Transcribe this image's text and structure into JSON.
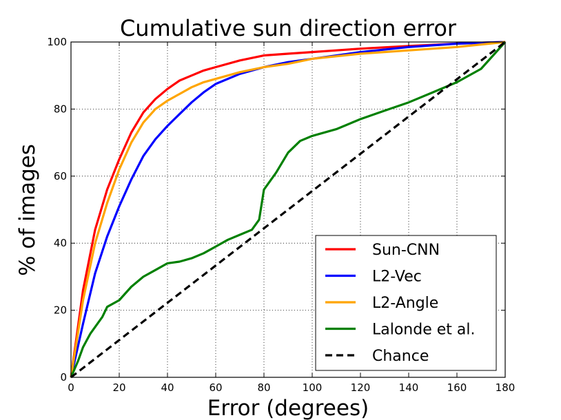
{
  "chart_data": {
    "type": "line",
    "title": "Cumulative sun direction error",
    "xlabel": "Error (degrees)",
    "ylabel": "% of images",
    "xlim": [
      0,
      180
    ],
    "ylim": [
      0,
      100
    ],
    "xticks": [
      0,
      20,
      40,
      60,
      80,
      100,
      120,
      140,
      160,
      180
    ],
    "yticks": [
      0,
      20,
      40,
      60,
      80,
      100
    ],
    "grid": true,
    "legend_position": "lower-right",
    "series": [
      {
        "name": "Sun-CNN",
        "color": "#ff0000",
        "style": "solid",
        "x": [
          0,
          5,
          10,
          15,
          20,
          25,
          30,
          35,
          40,
          45,
          50,
          55,
          60,
          70,
          80,
          90,
          100,
          120,
          140,
          160,
          180
        ],
        "y": [
          0,
          26,
          44,
          56,
          65,
          73,
          79,
          83,
          86,
          88.5,
          90,
          91.5,
          92.5,
          94.5,
          96,
          96.5,
          97,
          98,
          98.8,
          99.5,
          100
        ]
      },
      {
        "name": "L2-Vec",
        "color": "#0000ff",
        "style": "solid",
        "x": [
          0,
          5,
          10,
          15,
          20,
          25,
          30,
          35,
          40,
          45,
          50,
          55,
          60,
          70,
          80,
          90,
          100,
          120,
          140,
          160,
          180
        ],
        "y": [
          0,
          16,
          31,
          42,
          51,
          59,
          66,
          71,
          75,
          78.5,
          82,
          85,
          87.5,
          90.5,
          92.5,
          94,
          95,
          97,
          98.5,
          99.5,
          100
        ]
      },
      {
        "name": "L2-Angle",
        "color": "#ffa500",
        "style": "solid",
        "x": [
          0,
          5,
          10,
          15,
          20,
          25,
          30,
          35,
          40,
          45,
          50,
          55,
          60,
          70,
          80,
          90,
          100,
          120,
          140,
          160,
          180
        ],
        "y": [
          0,
          23,
          40,
          52,
          62,
          70,
          76,
          80,
          82.5,
          84.5,
          86.5,
          88,
          89,
          91,
          92.5,
          93.5,
          95,
          96.5,
          97.5,
          98.5,
          100
        ]
      },
      {
        "name": "Lalonde et al.",
        "color": "#008000",
        "style": "solid",
        "x": [
          0,
          3,
          5,
          8,
          10,
          13,
          15,
          20,
          25,
          30,
          35,
          40,
          45,
          50,
          55,
          60,
          65,
          70,
          75,
          78,
          80,
          85,
          90,
          95,
          100,
          110,
          120,
          130,
          140,
          150,
          160,
          170,
          180
        ],
        "y": [
          0,
          5,
          9,
          13,
          15,
          18,
          21,
          23,
          27,
          30,
          32,
          34,
          34.5,
          35.5,
          37,
          39,
          41,
          42.5,
          44,
          47,
          56,
          61,
          67,
          70.5,
          72,
          74,
          77,
          79.5,
          82,
          85,
          88,
          92,
          100
        ]
      },
      {
        "name": "Chance",
        "color": "#000000",
        "style": "dashed",
        "x": [
          0,
          180
        ],
        "y": [
          0,
          100
        ]
      }
    ]
  }
}
